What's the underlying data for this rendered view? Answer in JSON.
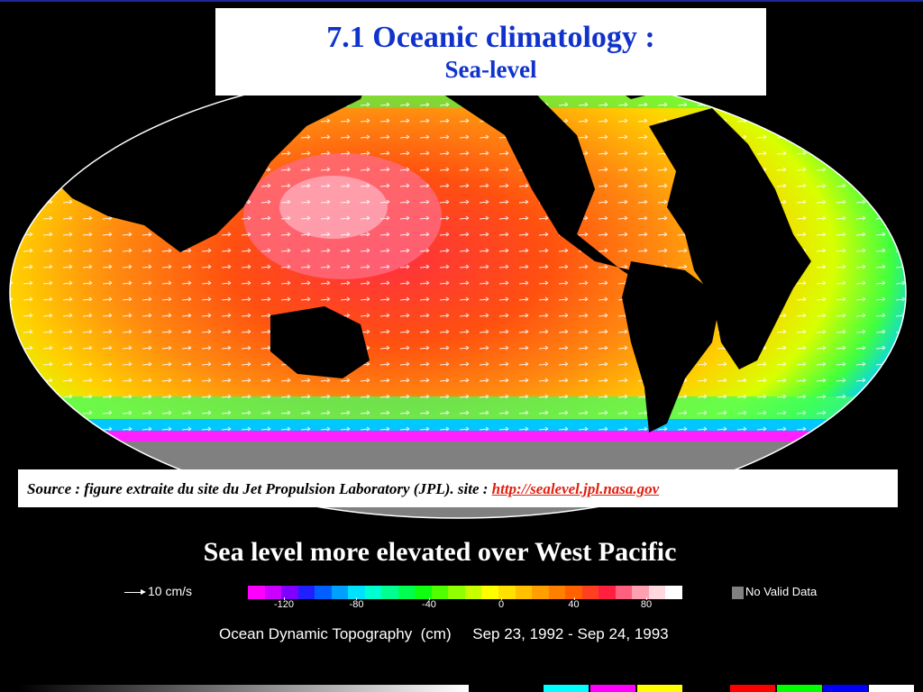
{
  "slide": {
    "title": "7.1 Oceanic climatology :",
    "subtitle": "Sea-level",
    "source_prefix": "Source : figure extraite du site du Jet Propulsion  Laboratory (JPL).  site : ",
    "source_link": "http://sealevel.jpl.nasa.gov",
    "headline": "Sea level more elevated over West Pacific"
  },
  "legend": {
    "arrow_label": "10 cm/s",
    "no_data_label": "No Valid Data",
    "caption": "Ocean Dynamic Topography  (cm)     Sep 23, 1992 - Sep 24, 1993",
    "ticks": [
      {
        "value": "-120",
        "pos": 0.083
      },
      {
        "value": "-80",
        "pos": 0.25
      },
      {
        "value": "-40",
        "pos": 0.417
      },
      {
        "value": "0",
        "pos": 0.583
      },
      {
        "value": "40",
        "pos": 0.75
      },
      {
        "value": "80",
        "pos": 0.917
      }
    ],
    "colors": [
      "#ff00ff",
      "#cc00ff",
      "#8000ff",
      "#2020ff",
      "#0060ff",
      "#00a0ff",
      "#00e0ff",
      "#00ffd0",
      "#00ff90",
      "#00ff50",
      "#10ff10",
      "#50ff00",
      "#90ff00",
      "#c8ff00",
      "#ffff00",
      "#ffe000",
      "#ffc000",
      "#ffa000",
      "#ff8000",
      "#ff6000",
      "#ff4020",
      "#ff2040",
      "#ff6080",
      "#ffa0b0",
      "#ffd8e0",
      "#ffffff"
    ]
  },
  "bottom_swatches": [
    "#00ffff",
    "#ff00ff",
    "#ffff00",
    "#ff0000",
    "#00ff00",
    "#0000ff",
    "#ffffff"
  ]
}
